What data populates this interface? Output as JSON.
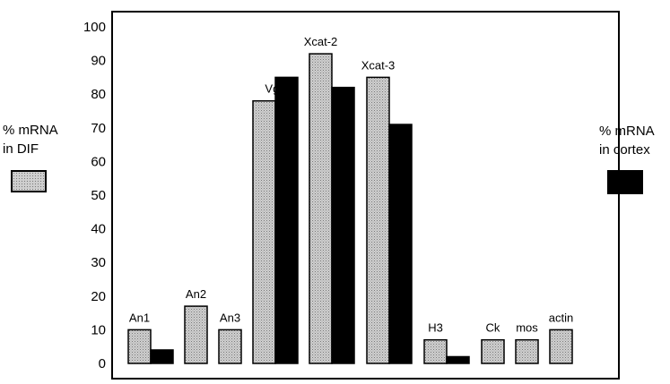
{
  "chart_data": {
    "type": "bar",
    "categories": [
      "An1",
      "An2",
      "An3",
      "Vg1",
      "Xcat-2",
      "Xcat-3",
      "H3",
      "Ck",
      "mos",
      "actin"
    ],
    "series": [
      {
        "name": "% mRNA in DIF",
        "values": [
          10,
          17,
          10,
          78,
          92,
          85,
          7,
          7,
          7,
          10
        ]
      },
      {
        "name": "% mRNA in cortex",
        "values": [
          4,
          null,
          null,
          85,
          82,
          71,
          2,
          null,
          null,
          null
        ]
      }
    ],
    "ylim": [
      0,
      100
    ],
    "yticks": [
      "0",
      "10",
      "20",
      "30",
      "40",
      "50",
      "60",
      "70",
      "80",
      "90",
      "100"
    ],
    "grid": false,
    "legend_placement": "sides"
  },
  "legend": {
    "dif_line1": "%  mRNA",
    "dif_line2": "in DIF",
    "cortex_line1": "% mRNA",
    "cortex_line2": "in cortex"
  },
  "colors": {
    "dif_fill": "#bdbdbd",
    "cortex_fill": "#000000",
    "axis": "#000000"
  }
}
